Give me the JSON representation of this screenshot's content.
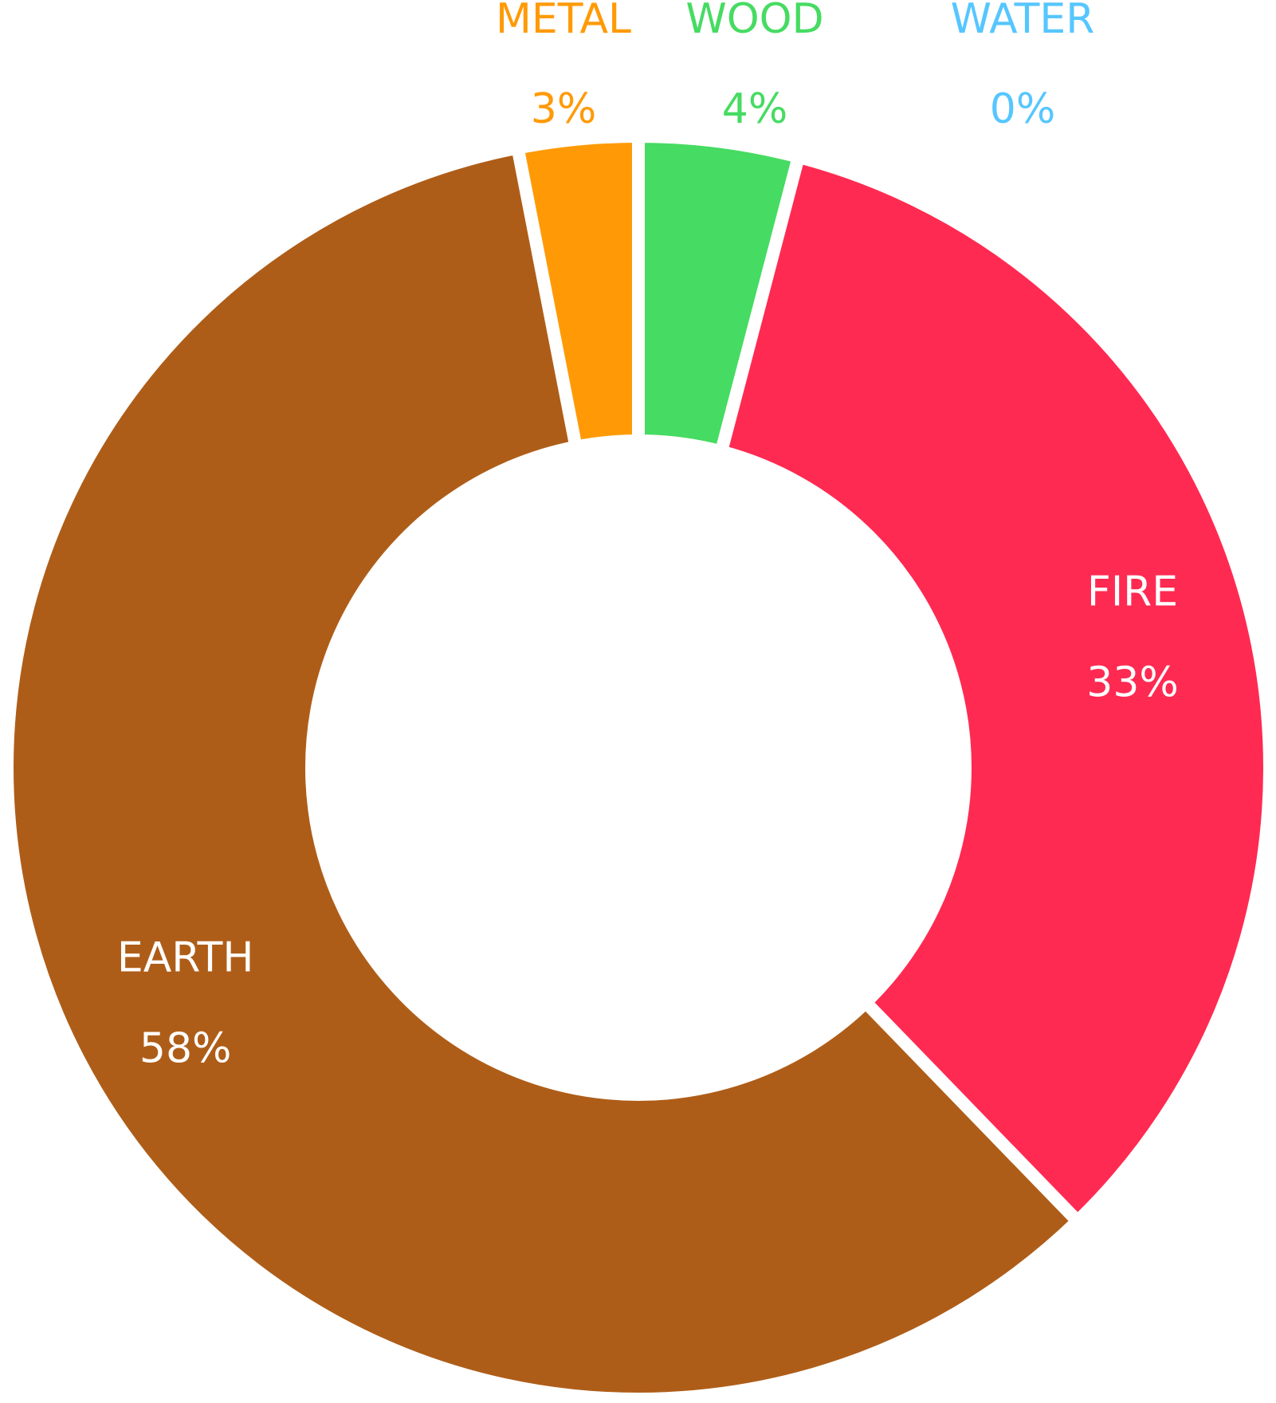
{
  "chart_data": {
    "type": "pie",
    "donut": true,
    "legend": "none",
    "slices": [
      {
        "label": "WOOD",
        "value": 4,
        "display": "4%",
        "color": "#46db62"
      },
      {
        "label": "FIRE",
        "value": 33,
        "display": "33%",
        "color": "#ff2a52"
      },
      {
        "label": "EARTH",
        "value": 58,
        "display": "58%",
        "color": "#ae5d18"
      },
      {
        "label": "METAL",
        "value": 3,
        "display": "3%",
        "color": "#ff9a06"
      },
      {
        "label": "WATER",
        "value": 0,
        "display": "0%",
        "color": "#56c6ff"
      }
    ]
  }
}
